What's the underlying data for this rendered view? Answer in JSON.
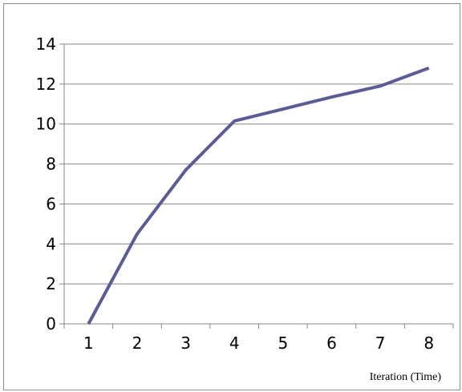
{
  "chart_data": {
    "type": "line",
    "title": "",
    "xlabel": "Iteration (Time)",
    "ylabel": "",
    "categories": [
      "1",
      "2",
      "3",
      "4",
      "5",
      "6",
      "7",
      "8"
    ],
    "series": [
      {
        "values": [
          0,
          4.5,
          7.7,
          10.15,
          10.75,
          11.35,
          11.9,
          12.8
        ]
      }
    ],
    "ylim": [
      0,
      14
    ],
    "yticks": [
      "0",
      "2",
      "4",
      "6",
      "8",
      "10",
      "12",
      "14"
    ],
    "grid": true,
    "legend": "none",
    "line_color": "#5b5c94",
    "grid_color": "#868686"
  }
}
